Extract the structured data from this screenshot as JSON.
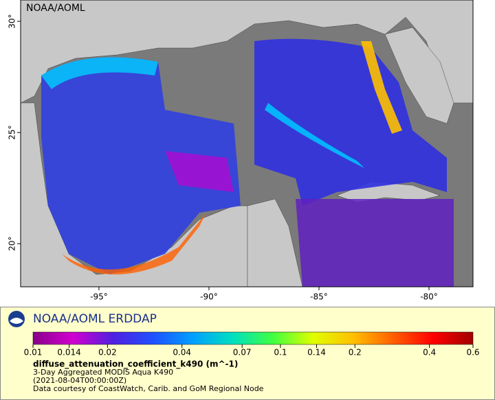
{
  "map": {
    "watermark": "NOAA/AOML",
    "xlim": [
      -98.56,
      -78
    ],
    "ylim": [
      18.06,
      30.96
    ],
    "xticks": [
      {
        "value": -95,
        "label": "-95°"
      },
      {
        "value": -90,
        "label": "-90°"
      },
      {
        "value": -85,
        "label": "-85°"
      },
      {
        "value": -80,
        "label": "-80°"
      }
    ],
    "yticks": [
      {
        "value": 30,
        "label": "30°"
      },
      {
        "value": 25,
        "label": "25°"
      },
      {
        "value": 20,
        "label": "20°"
      }
    ]
  },
  "legend": {
    "title": "NOAA/AOML ERDDAP",
    "scale": "log",
    "lim": [
      0.01,
      0.6
    ],
    "ticks": [
      0.01,
      0.014,
      0.02,
      0.04,
      0.07,
      0.1,
      0.14,
      0.2,
      0.4,
      0.6
    ],
    "colormap": [
      "#8a008a",
      "#d000d0",
      "#5020e0",
      "#2050ff",
      "#00a0ff",
      "#00e0c0",
      "#40ff40",
      "#e0ff00",
      "#ffc000",
      "#ff6000",
      "#ff0000",
      "#a00000"
    ],
    "variable": "diffuse_attenuation_coefficient_k490 (m^-1)",
    "lines": [
      "3-Day Aggregated MODIS Aqua K490",
      "(2021-08-04T00:00:00Z)",
      "Data courtesy of CoastWatch, Carib. and GoM Regional Node"
    ]
  }
}
